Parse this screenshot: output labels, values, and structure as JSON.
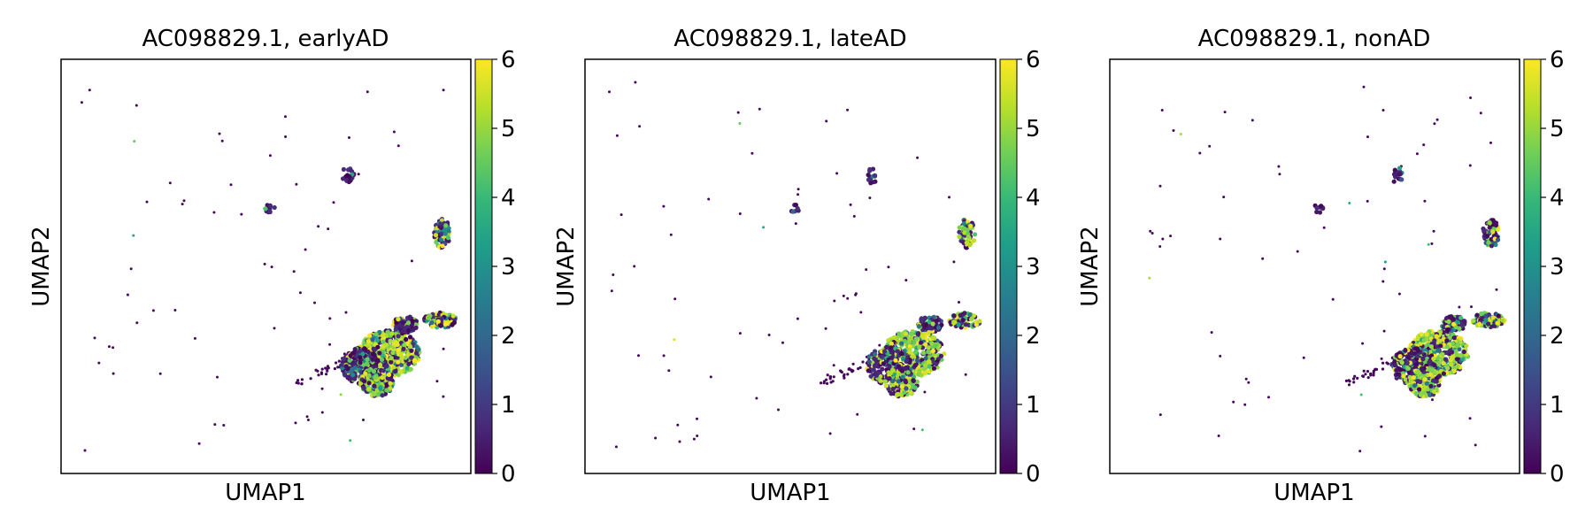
{
  "chart_data": [
    {
      "type": "scatter",
      "title": "AC098829.1, earlyAD",
      "xlabel": "UMAP1",
      "ylabel": "UMAP2",
      "colorbar": {
        "min": 0,
        "max": 6,
        "ticks": [
          "0",
          "1",
          "2",
          "3",
          "4",
          "5",
          "6"
        ],
        "colormap": "viridis"
      },
      "grid": false
    },
    {
      "type": "scatter",
      "title": "AC098829.1, lateAD",
      "xlabel": "UMAP1",
      "ylabel": "UMAP2",
      "colorbar": {
        "min": 0,
        "max": 6,
        "ticks": [
          "0",
          "1",
          "2",
          "3",
          "4",
          "5",
          "6"
        ],
        "colormap": "viridis"
      },
      "grid": false
    },
    {
      "type": "scatter",
      "title": "AC098829.1, nonAD",
      "xlabel": "UMAP1",
      "ylabel": "UMAP2",
      "colorbar": {
        "min": 0,
        "max": 6,
        "ticks": [
          "0",
          "1",
          "2",
          "3",
          "4",
          "5",
          "6"
        ],
        "colormap": "viridis"
      },
      "grid": false
    }
  ],
  "colors": {
    "viridis": [
      "#440154",
      "#482878",
      "#3e4a89",
      "#31688e",
      "#26828e",
      "#1f9e89",
      "#35b779",
      "#6ece58",
      "#b5de2b",
      "#fde725"
    ],
    "axis": "#000000",
    "background": "#ffffff"
  }
}
